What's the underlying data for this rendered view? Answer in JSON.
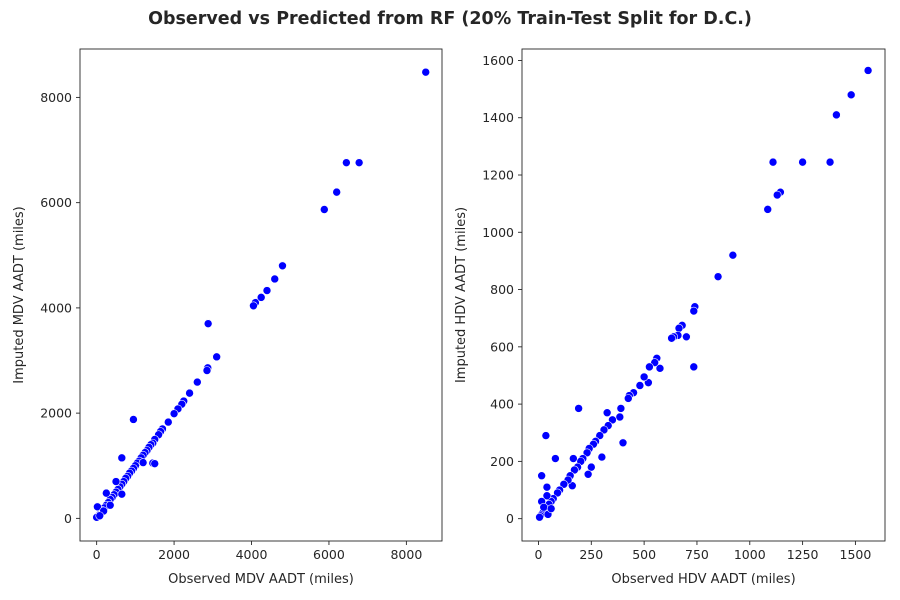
{
  "figure": {
    "title": "Observed vs Predicted from RF (20% Train-Test Split for D.C.)"
  },
  "chart_data": [
    {
      "type": "scatter",
      "xlabel": "Observed MDV AADT (miles)",
      "ylabel": "Imputed MDV AADT (miles)",
      "xlim": [
        -430,
        8920
      ],
      "ylim": [
        -430,
        8920
      ],
      "xticks": [
        0,
        2000,
        4000,
        6000,
        8000
      ],
      "yticks": [
        0,
        2000,
        4000,
        6000,
        8000
      ],
      "grid": false,
      "marker_color": "#0000ff",
      "points": [
        [
          8500,
          8480
        ],
        [
          6450,
          6760
        ],
        [
          6780,
          6760
        ],
        [
          6200,
          6200
        ],
        [
          5880,
          5870
        ],
        [
          4800,
          4800
        ],
        [
          4600,
          4550
        ],
        [
          4400,
          4330
        ],
        [
          4250,
          4200
        ],
        [
          4100,
          4100
        ],
        [
          4050,
          4040
        ],
        [
          3100,
          3070
        ],
        [
          2870,
          2860
        ],
        [
          2850,
          2810
        ],
        [
          2880,
          3700
        ],
        [
          2600,
          2590
        ],
        [
          2400,
          2380
        ],
        [
          2250,
          2230
        ],
        [
          2200,
          2170
        ],
        [
          2100,
          2080
        ],
        [
          2000,
          1990
        ],
        [
          1850,
          1830
        ],
        [
          1700,
          1700
        ],
        [
          1650,
          1650
        ],
        [
          1600,
          1590
        ],
        [
          1500,
          1500
        ],
        [
          1450,
          1430
        ],
        [
          1400,
          1400
        ],
        [
          1350,
          1350
        ],
        [
          1300,
          1290
        ],
        [
          1250,
          1250
        ],
        [
          1200,
          1200
        ],
        [
          1150,
          1150
        ],
        [
          1100,
          1090
        ],
        [
          1050,
          1050
        ],
        [
          1000,
          1000
        ],
        [
          950,
          950
        ],
        [
          900,
          900
        ],
        [
          850,
          860
        ],
        [
          800,
          800
        ],
        [
          750,
          760
        ],
        [
          700,
          700
        ],
        [
          650,
          650
        ],
        [
          600,
          600
        ],
        [
          550,
          550
        ],
        [
          500,
          500
        ],
        [
          450,
          450
        ],
        [
          400,
          400
        ],
        [
          350,
          360
        ],
        [
          300,
          300
        ],
        [
          250,
          250
        ],
        [
          200,
          200
        ],
        [
          150,
          150
        ],
        [
          100,
          100
        ],
        [
          60,
          60
        ],
        [
          30,
          30
        ],
        [
          0,
          20
        ],
        [
          20,
          220
        ],
        [
          250,
          480
        ],
        [
          500,
          700
        ],
        [
          650,
          1150
        ],
        [
          950,
          1880
        ],
        [
          1450,
          1050
        ],
        [
          1500,
          1040
        ],
        [
          1200,
          1060
        ],
        [
          650,
          460
        ],
        [
          350,
          250
        ],
        [
          180,
          140
        ],
        [
          80,
          50
        ]
      ]
    },
    {
      "type": "scatter",
      "xlabel": "Observed HDV AADT (miles)",
      "ylabel": "Imputed HDV AADT (miles)",
      "xlim": [
        -78,
        1640
      ],
      "ylim": [
        -78,
        1640
      ],
      "xticks": [
        0,
        250,
        500,
        750,
        1000,
        1250,
        1500
      ],
      "yticks": [
        0,
        200,
        400,
        600,
        800,
        1000,
        1200,
        1400,
        1600
      ],
      "grid": false,
      "marker_color": "#0000ff",
      "points": [
        [
          1560,
          1565
        ],
        [
          1480,
          1480
        ],
        [
          1410,
          1410
        ],
        [
          1380,
          1245
        ],
        [
          1250,
          1245
        ],
        [
          1110,
          1245
        ],
        [
          1145,
          1140
        ],
        [
          1130,
          1130
        ],
        [
          1085,
          1080
        ],
        [
          920,
          920
        ],
        [
          850,
          845
        ],
        [
          740,
          740
        ],
        [
          735,
          725
        ],
        [
          735,
          530
        ],
        [
          700,
          635
        ],
        [
          680,
          675
        ],
        [
          665,
          665
        ],
        [
          660,
          640
        ],
        [
          640,
          635
        ],
        [
          630,
          630
        ],
        [
          575,
          525
        ],
        [
          560,
          560
        ],
        [
          550,
          545
        ],
        [
          525,
          530
        ],
        [
          520,
          475
        ],
        [
          500,
          495
        ],
        [
          480,
          465
        ],
        [
          450,
          440
        ],
        [
          430,
          430
        ],
        [
          425,
          420
        ],
        [
          400,
          265
        ],
        [
          390,
          385
        ],
        [
          385,
          355
        ],
        [
          350,
          345
        ],
        [
          330,
          325
        ],
        [
          325,
          370
        ],
        [
          310,
          310
        ],
        [
          300,
          215
        ],
        [
          290,
          290
        ],
        [
          270,
          270
        ],
        [
          260,
          260
        ],
        [
          250,
          180
        ],
        [
          240,
          245
        ],
        [
          230,
          230
        ],
        [
          235,
          155
        ],
        [
          210,
          210
        ],
        [
          200,
          200
        ],
        [
          190,
          385
        ],
        [
          185,
          180
        ],
        [
          170,
          170
        ],
        [
          165,
          210
        ],
        [
          160,
          115
        ],
        [
          150,
          150
        ],
        [
          140,
          135
        ],
        [
          120,
          120
        ],
        [
          100,
          100
        ],
        [
          90,
          90
        ],
        [
          80,
          210
        ],
        [
          70,
          70
        ],
        [
          60,
          60
        ],
        [
          50,
          50
        ],
        [
          40,
          110
        ],
        [
          35,
          290
        ],
        [
          40,
          80
        ],
        [
          30,
          30
        ],
        [
          20,
          20
        ],
        [
          15,
          150
        ],
        [
          15,
          60
        ],
        [
          10,
          10
        ],
        [
          5,
          5
        ],
        [
          45,
          15
        ],
        [
          25,
          40
        ],
        [
          60,
          35
        ]
      ]
    }
  ]
}
